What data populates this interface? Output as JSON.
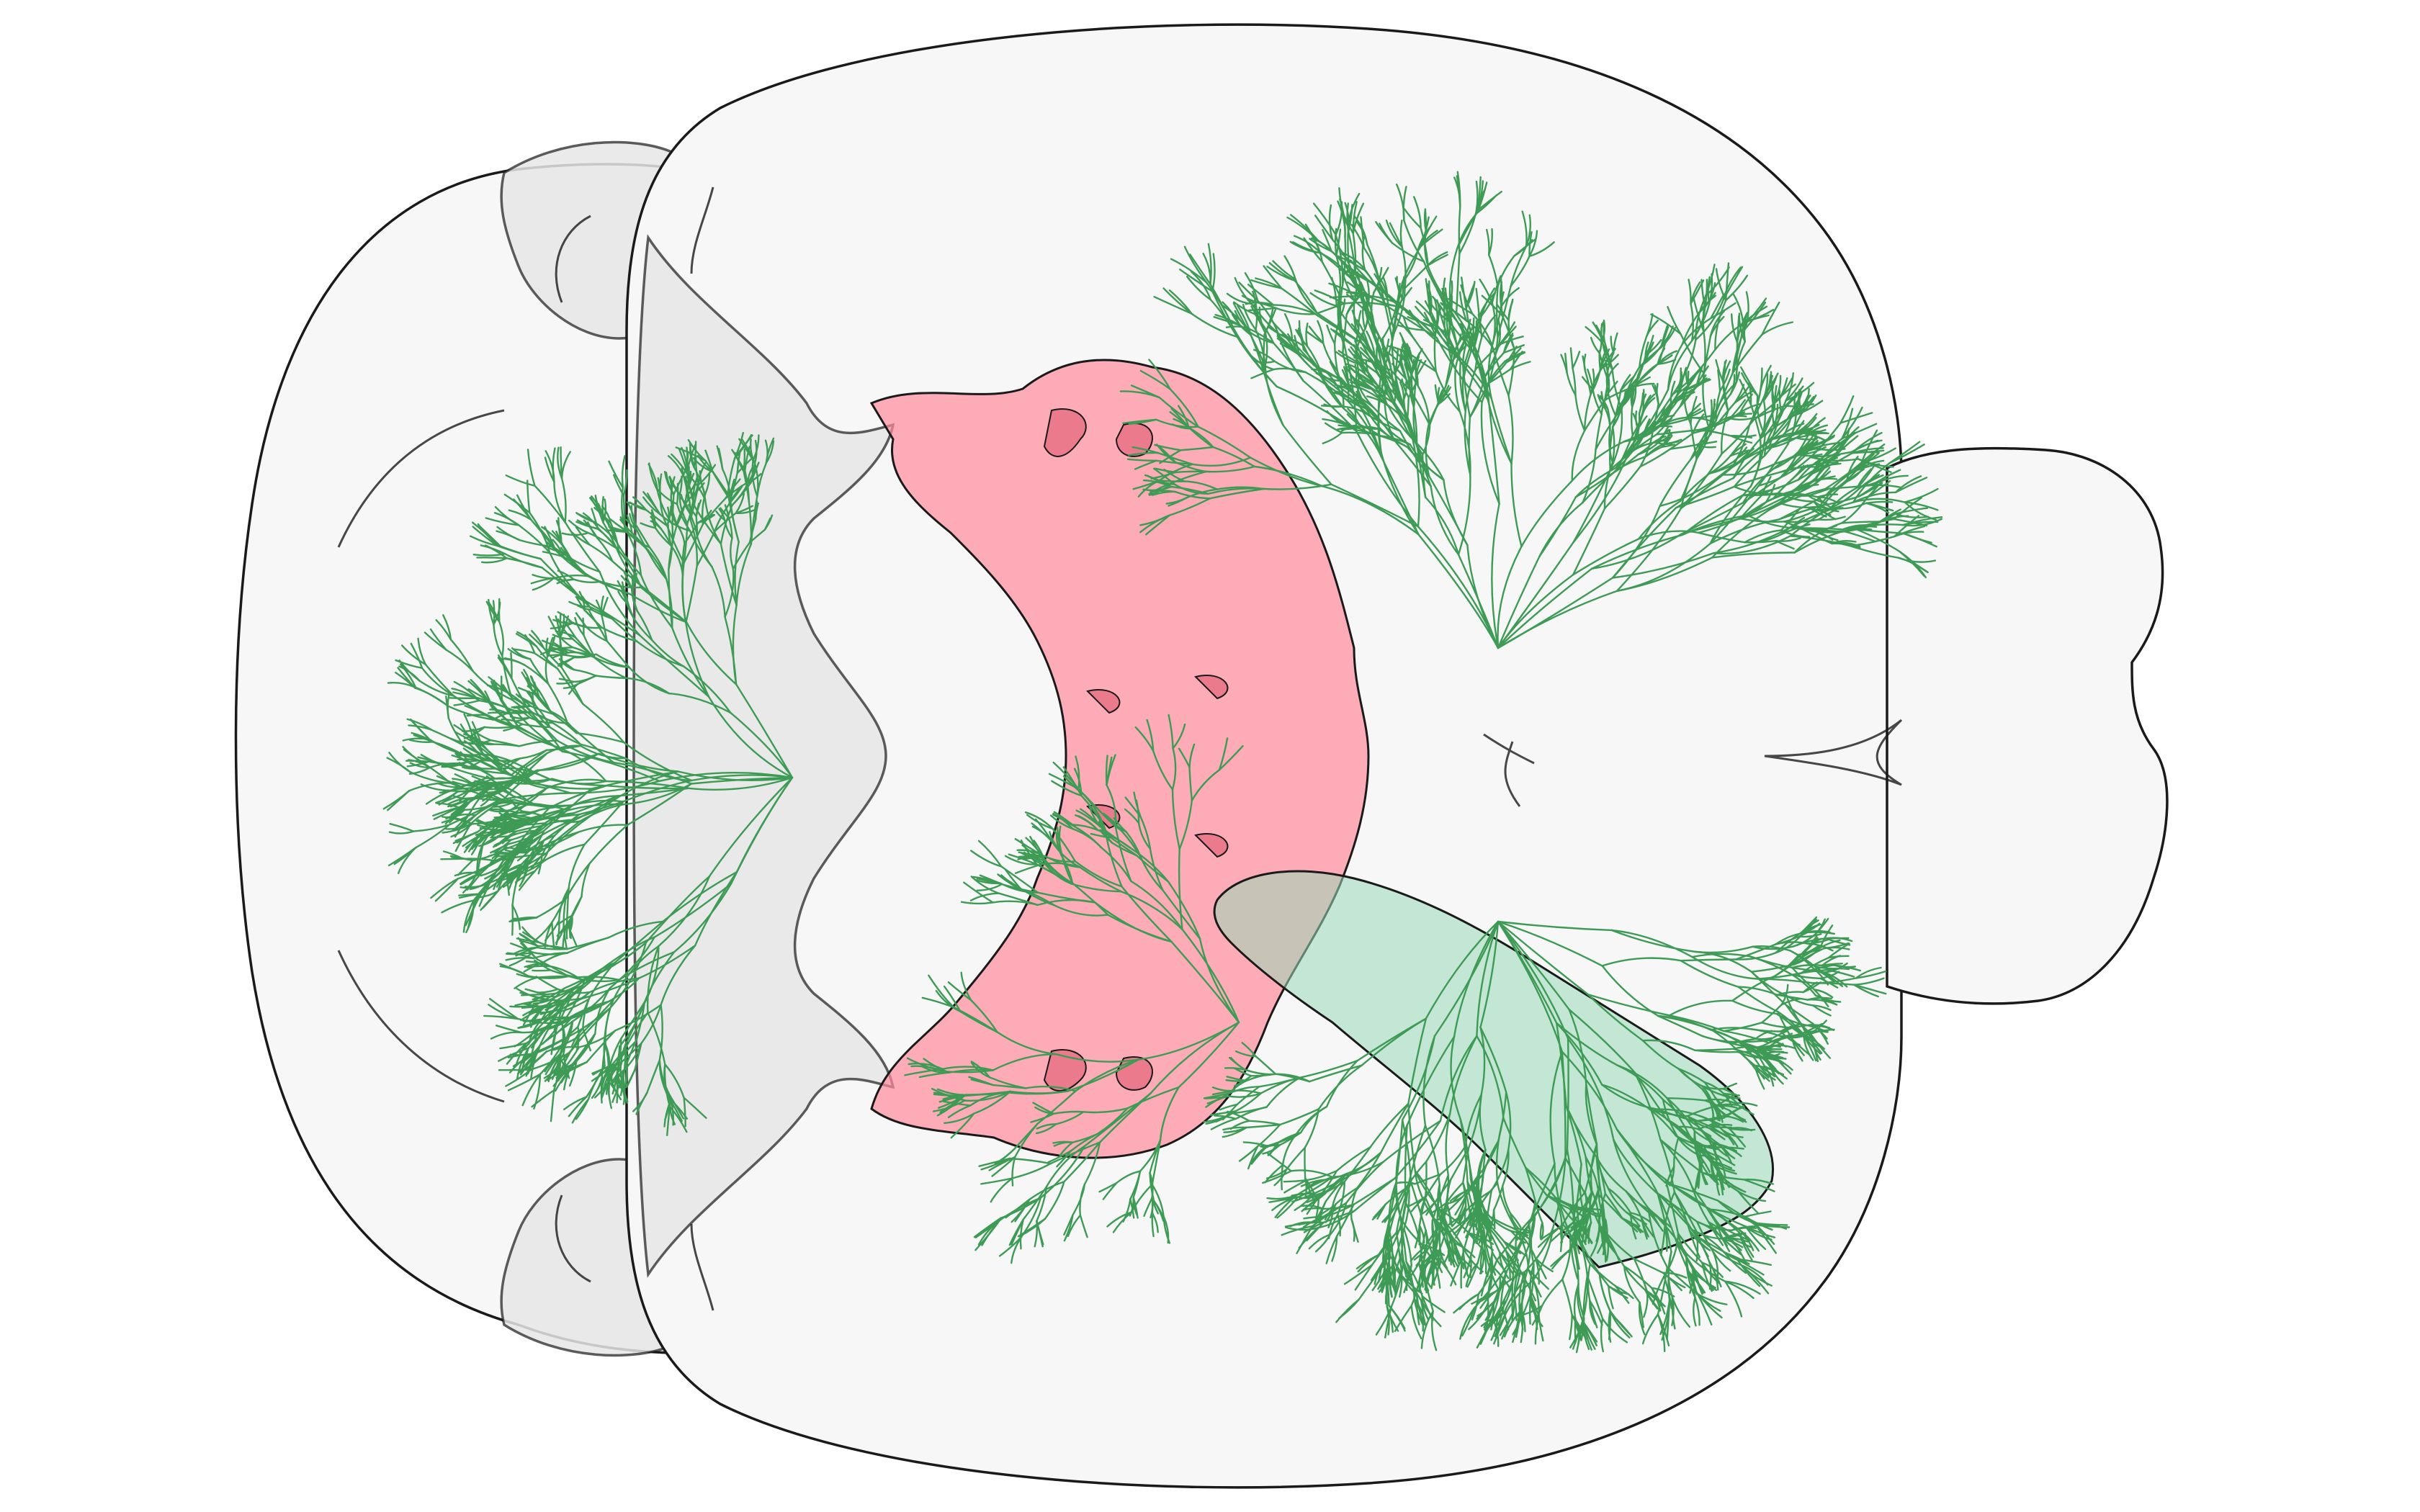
{
  "figure": {
    "kind": "mouse brain dorsal view with projection neuron tracing",
    "outline_color": "#1a1a1a",
    "brain_fill": "#f7f7f7",
    "ventricle_fill": "#e6e6e6",
    "region_a_color": "#ff8a9a",
    "region_b_color": "#9ad8b8",
    "axon_color": "#3e9b55",
    "background": "#ffffff"
  }
}
